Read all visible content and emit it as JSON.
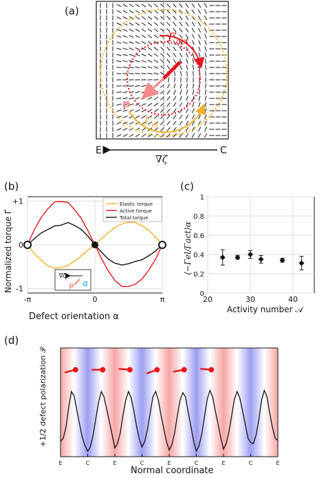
{
  "panel_a": {
    "label": "(a)",
    "gamma_act": "Γ",
    "gamma_act_sub": "act",
    "gamma_el": "Γ",
    "gamma_el_sub": "el",
    "p": "p",
    "e": "E",
    "c": "C",
    "grad": "∇ζ",
    "colors": {
      "act": "#e8151c",
      "el": "#f2b02b",
      "p": "#f48a8a"
    }
  },
  "panel_b": {
    "label": "(b)",
    "ylabel": "Normalized torque Γ",
    "xlabel": "Defect orientation α",
    "inset": {
      "grad": "∇ζ",
      "p": "p",
      "alpha": "α"
    }
  },
  "panel_c": {
    "label": "(c)",
    "ylabel": "⟨−Γel/Γact⟩α",
    "xlabel": "Activity number 𝒜"
  },
  "panel_d": {
    "label": "(d)",
    "ylabel": "+1/2 defect polarization 𝒫",
    "xlabel": "Normal coordinate",
    "xticks": [
      "E",
      "C",
      "E",
      "C",
      "E",
      "C",
      "E",
      "C",
      "E"
    ]
  },
  "chart_data": [
    {
      "type": "line",
      "panel": "b",
      "xlabel": "Defect orientation α",
      "ylabel": "Normalized torque Γ",
      "xlim": [
        -3.1416,
        3.1416
      ],
      "ylim": [
        -1.1,
        1.1
      ],
      "xticks": [
        "-π",
        "0",
        "π"
      ],
      "yticks": [
        "-1",
        "0",
        "+1"
      ],
      "grid": true,
      "legend": "top-right",
      "series": [
        {
          "name": "Elastic torque",
          "color": "#f2b02b",
          "x": [
            -3.14,
            -2.83,
            -2.51,
            -2.2,
            -1.88,
            -1.57,
            -1.26,
            -0.94,
            -0.63,
            -0.31,
            0,
            0.31,
            0.63,
            0.94,
            1.26,
            1.57,
            1.88,
            2.2,
            2.51,
            2.83,
            3.14
          ],
          "y": [
            0,
            -0.2,
            -0.35,
            -0.48,
            -0.53,
            -0.52,
            -0.47,
            -0.37,
            -0.25,
            -0.12,
            0,
            0.14,
            0.28,
            0.4,
            0.48,
            0.52,
            0.51,
            0.44,
            0.33,
            0.18,
            0
          ]
        },
        {
          "name": "Active torque",
          "color": "#e8151c",
          "x": [
            -3.14,
            -2.83,
            -2.51,
            -2.2,
            -1.88,
            -1.57,
            -1.26,
            -0.94,
            -0.63,
            -0.31,
            0,
            0.31,
            0.63,
            0.94,
            1.26,
            1.57,
            1.88,
            2.2,
            2.51,
            2.83,
            3.14
          ],
          "y": [
            0,
            0.34,
            0.62,
            0.82,
            0.98,
            0.99,
            0.97,
            0.8,
            0.6,
            0.31,
            0,
            -0.32,
            -0.6,
            -0.82,
            -0.95,
            -0.95,
            -0.9,
            -0.78,
            -0.58,
            -0.32,
            0
          ]
        },
        {
          "name": "Total torque",
          "color": "#111111",
          "x": [
            -3.14,
            -2.83,
            -2.51,
            -2.2,
            -1.88,
            -1.57,
            -1.26,
            -0.94,
            -0.63,
            -0.31,
            0,
            0.31,
            0.63,
            0.94,
            1.26,
            1.57,
            1.88,
            2.2,
            2.51,
            2.83,
            3.14
          ],
          "y": [
            0,
            0.14,
            0.27,
            0.35,
            0.43,
            0.45,
            0.51,
            0.44,
            0.35,
            0.19,
            0,
            -0.17,
            -0.33,
            -0.42,
            -0.46,
            -0.43,
            -0.38,
            -0.34,
            -0.25,
            -0.14,
            0
          ]
        }
      ]
    },
    {
      "type": "scatter",
      "panel": "c",
      "xlabel": "Activity number 𝒜",
      "ylabel": "⟨−Γel/Γact⟩α",
      "xlim": [
        20,
        45
      ],
      "ylim": [
        0,
        1
      ],
      "xticks": [
        "20",
        "30",
        "40"
      ],
      "yticks": [
        "0",
        "0.2",
        "0.4",
        "0.6",
        "0.8",
        "1"
      ],
      "grid": true,
      "series": [
        {
          "x": [
            23.5,
            27,
            30,
            32.5,
            37.5,
            42
          ],
          "y": [
            0.37,
            0.37,
            0.4,
            0.35,
            0.34,
            0.31
          ],
          "err": [
            0.08,
            0.02,
            0.04,
            0.04,
            0.02,
            0.07
          ]
        }
      ]
    },
    {
      "type": "line",
      "panel": "d",
      "xlabel": "Normal coordinate",
      "ylabel": "+1/2 defect polarization 𝒫",
      "xlim": [
        0,
        8
      ],
      "ylim": [
        0,
        1
      ],
      "xticks": [
        "E",
        "C",
        "E",
        "C",
        "E",
        "C",
        "E",
        "C",
        "E"
      ],
      "series": [
        {
          "x": [
            0,
            0.1,
            0.2,
            0.3,
            0.4,
            0.5,
            0.6,
            0.7,
            0.8,
            0.9,
            1,
            1.1,
            1.2,
            1.3,
            1.4,
            1.5,
            1.6,
            1.7,
            1.8,
            1.9,
            2,
            2.1,
            2.2,
            2.3,
            2.4,
            2.5,
            2.6,
            2.7,
            2.8,
            2.9,
            3,
            3.1,
            3.2,
            3.3,
            3.4,
            3.5,
            3.6,
            3.7,
            3.8,
            3.9,
            4,
            4.1,
            4.2,
            4.3,
            4.4,
            4.5,
            4.6,
            4.7,
            4.8,
            4.9,
            5,
            5.1,
            5.2,
            5.3,
            5.4,
            5.5,
            5.6,
            5.7,
            5.8,
            5.9,
            6,
            6.1,
            6.2,
            6.3,
            6.4,
            6.5,
            6.6,
            6.7,
            6.8,
            6.9,
            7,
            7.1,
            7.2,
            7.3,
            7.4,
            7.5,
            7.6,
            7.7,
            7.8,
            7.9,
            8
          ],
          "y": [
            0.14,
            0.17,
            0.27,
            0.45,
            0.6,
            0.56,
            0.43,
            0.3,
            0.18,
            0.1,
            0.05,
            0.09,
            0.2,
            0.35,
            0.5,
            0.6,
            0.55,
            0.44,
            0.32,
            0.2,
            0.08,
            0.12,
            0.22,
            0.38,
            0.52,
            0.6,
            0.54,
            0.42,
            0.28,
            0.16,
            0.09,
            0.14,
            0.25,
            0.4,
            0.55,
            0.6,
            0.52,
            0.38,
            0.26,
            0.14,
            0.06,
            0.11,
            0.22,
            0.38,
            0.52,
            0.59,
            0.55,
            0.41,
            0.28,
            0.14,
            0.05,
            0.1,
            0.21,
            0.37,
            0.53,
            0.61,
            0.55,
            0.42,
            0.3,
            0.17,
            0.07,
            0.12,
            0.23,
            0.38,
            0.53,
            0.6,
            0.54,
            0.42,
            0.3,
            0.17,
            0.13,
            0.12,
            0.2,
            0.34,
            0.52,
            0.61,
            0.55,
            0.4,
            0.27,
            0.17,
            0.15
          ]
        }
      ],
      "defect_markers": {
        "x": [
          0.45,
          1.45,
          2.45,
          3.45,
          4.45,
          5.45
        ],
        "angle_deg": [
          -15,
          0,
          5,
          -20,
          -10,
          5
        ]
      }
    }
  ]
}
